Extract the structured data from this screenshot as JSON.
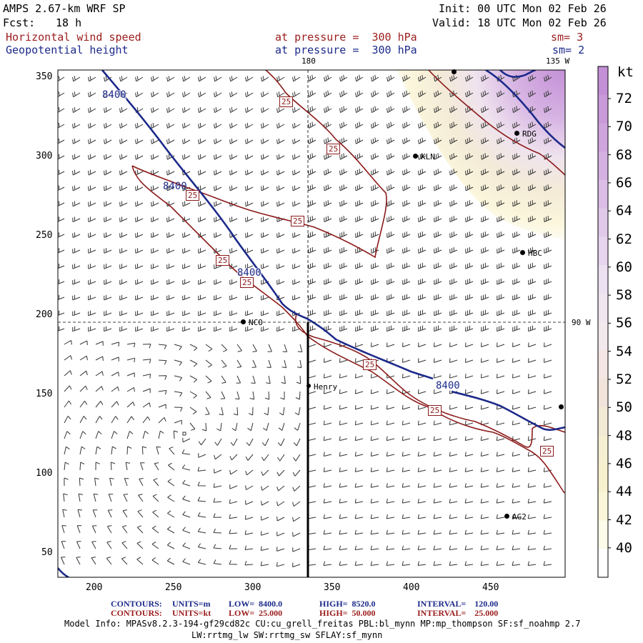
{
  "header": {
    "model_title": "AMPS 2.67-km WRF SP",
    "init": "Init: 00 UTC Mon 02 Feb 26",
    "fcst_label": "Fcst:",
    "fcst_value": "18 h",
    "valid": "Valid: 18 UTC Mon 02 Feb 26",
    "field1_name": "Horizontal wind speed",
    "field1_level": "at pressure =  300 hPa",
    "field1_sm": "sm= 3",
    "field2_name": "Geopotential height",
    "field2_level": "at pressure =  300 hPa",
    "field2_sm": "sm= 2"
  },
  "map": {
    "lon_label_top_180": "180",
    "lon_label_top_135w": "135 W",
    "lon_label_right_90w": "90 W",
    "x_ticks": [
      "200",
      "250",
      "300",
      "350",
      "400",
      "450"
    ],
    "y_ticks": [
      "350",
      "300",
      "250",
      "200",
      "150",
      "100",
      "50"
    ],
    "contour_labels_height": [
      "8400",
      "8400",
      "8400",
      "8400"
    ],
    "contour_labels_speed": [
      "25",
      "25",
      "25",
      "25",
      "25",
      "25",
      "25",
      "25",
      "25"
    ],
    "stations": [
      {
        "id": "LVT",
        "label": ""
      },
      {
        "id": "RDG",
        "label": "RDG"
      },
      {
        "id": "KLN",
        "label": "KLN"
      },
      {
        "id": "HBC",
        "label": "HBC"
      },
      {
        "id": "NCO",
        "label": "NCO"
      },
      {
        "id": "Henry",
        "label": "Henry"
      },
      {
        "id": "AG2",
        "label": "AG2"
      },
      {
        "id": "E",
        "label": ""
      }
    ]
  },
  "colorbar": {
    "unit": "kt",
    "labels": [
      "72",
      "70",
      "68",
      "66",
      "64",
      "62",
      "60",
      "58",
      "56",
      "54",
      "52",
      "50",
      "48",
      "46",
      "44",
      "42",
      "40"
    ],
    "colors": [
      "#c38fd6",
      "#c99ad9",
      "#cfa5dd",
      "#d5b1e2",
      "#dbbde6",
      "#e1c9ea",
      "#e7d4ee",
      "#ece0f1",
      "#f0e6f0",
      "#f3e9ec",
      "#f3e6e3",
      "#f2e4da",
      "#f3ead6",
      "#f6efd2",
      "#f8f1cf",
      "#fbf6d9",
      "#fdfbe9",
      "#ffffff"
    ]
  },
  "footer": {
    "contours1_label": "CONTOURS:",
    "contours1_units": "UNITS=m",
    "contours1_low": "LOW=  8400.0",
    "contours1_high": "HIGH=  8520.0",
    "contours1_interval": "INTERVAL=    120.00",
    "contours2_label": "CONTOURS:",
    "contours2_units": "UNITS=kt",
    "contours2_low": "LOW=  25.000",
    "contours2_high": "HIGH=  50.000",
    "contours2_interval": "INTERVAL=    25.000",
    "model_info_line1": "Model Info: MPASv8.2.3-194-gf29cd82c CU:cu_grell_freitas PBL:bl_mynn MP:mp_thompson SF:sf_noahmp 2.7",
    "model_info_line2": "LW:rrtmg_lw SW:rrtmg_sw SFLAY:sf_mynn"
  },
  "colors": {
    "height_contour": "#1c2a8a",
    "speed_contour": "#8b1a1a",
    "header_red": "#9b1c1c",
    "header_blue": "#1c2a8a"
  }
}
